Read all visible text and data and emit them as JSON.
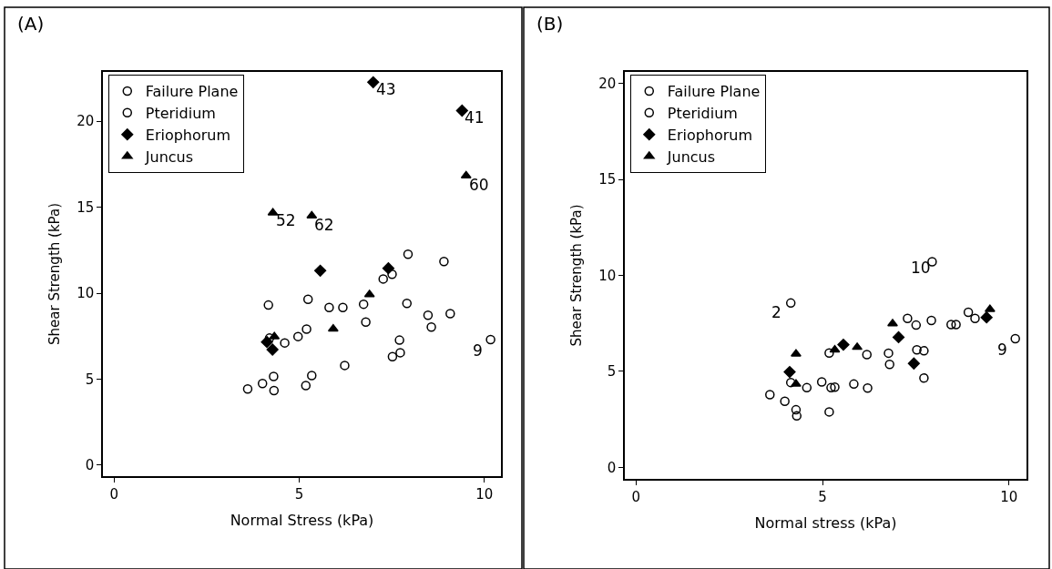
{
  "chart_data": [
    {
      "type": "scatter",
      "title": "(A)",
      "xlabel": "Normal Stress (kPa)",
      "ylabel": "Shear Strength (kPa)",
      "xlim": [
        -0.3,
        10.45
      ],
      "ylim": [
        -0.64,
        22.87
      ],
      "xticks": [
        0,
        5,
        10
      ],
      "yticks": [
        0,
        5,
        10,
        15,
        20
      ],
      "legend": "top left",
      "series": [
        {
          "name": "Failure Plane",
          "color": "#000000",
          "marker": "circle-open",
          "x": [
            4.17,
            5.24,
            5.81,
            6.18,
            6.74,
            6.8,
            7.91,
            8.48,
            9.08,
            8.57,
            4.97,
            5.2,
            4.61,
            4.2,
            7.71,
            7.73,
            7.52,
            10.17,
            6.23,
            5.34,
            5.18,
            4.31,
            4.32,
            4.01,
            3.61,
            7.27,
            7.51,
            7.94,
            8.91
          ],
          "values": [
            9.31,
            9.65,
            9.17,
            9.17,
            9.36,
            8.32,
            9.41,
            8.72,
            8.81,
            8.03,
            7.48,
            7.91,
            7.11,
            7.39,
            7.27,
            6.54,
            6.31,
            7.3,
            5.8,
            5.21,
            4.63,
            5.16,
            4.34,
            4.75,
            4.43,
            10.83,
            11.1,
            12.27,
            11.84
          ]
        },
        {
          "name": "Pteridium",
          "color": "#000000",
          "marker": "circle-open"
        },
        {
          "name": "Eriophorum",
          "color": "#000000",
          "marker": "diamond",
          "x": [
            7.0,
            9.4,
            5.57,
            7.41,
            4.13,
            4.28
          ],
          "values": [
            22.27,
            20.62,
            11.31,
            11.45,
            7.16,
            6.72
          ]
        },
        {
          "name": "Juncus",
          "color": "#000000",
          "marker": "triangle-up",
          "x": [
            9.51,
            4.29,
            5.34,
            6.9,
            5.92,
            4.33
          ],
          "values": [
            16.84,
            14.68,
            14.5,
            9.93,
            7.93,
            7.48
          ]
        }
      ],
      "annotations": [
        {
          "text": "43",
          "x": 7.0,
          "y": 22.27
        },
        {
          "text": "41",
          "x": 9.4,
          "y": 20.62
        },
        {
          "text": "60",
          "x": 9.51,
          "y": 16.84
        },
        {
          "text": "52",
          "x": 4.29,
          "y": 14.68
        },
        {
          "text": "62",
          "x": 5.34,
          "y": 14.5
        },
        {
          "text": "9",
          "x": 10.17,
          "y": 7.3
        }
      ]
    },
    {
      "type": "scatter",
      "title": "(B)",
      "xlabel": "Normal stress (kPa)",
      "ylabel": "Shear Strength (kPa)",
      "xlim": [
        -0.3,
        10.47
      ],
      "ylim": [
        -0.6,
        20.6
      ],
      "xticks": [
        0,
        5,
        10
      ],
      "yticks": [
        0,
        5,
        10,
        15,
        20
      ],
      "legend": "top left",
      "series": [
        {
          "name": "Failure Plane",
          "color": "#000000",
          "marker": "circle-open",
          "x": [
            4.15,
            3.59,
            3.99,
            4.29,
            4.31,
            4.15,
            4.58,
            4.98,
            5.23,
            5.33,
            5.18,
            5.18,
            5.84,
            6.19,
            6.21,
            6.77,
            6.8,
            7.28,
            7.51,
            7.92,
            7.53,
            7.72,
            7.72,
            8.45,
            8.58,
            8.91,
            9.09,
            10.17,
            7.94
          ],
          "values": [
            8.56,
            3.79,
            3.44,
            3.0,
            2.68,
            4.42,
            4.15,
            4.45,
            4.15,
            4.18,
            2.89,
            5.96,
            4.34,
            5.87,
            4.13,
            5.95,
            5.36,
            7.76,
            7.41,
            7.65,
            6.12,
            6.07,
            4.65,
            7.44,
            7.44,
            8.08,
            7.76,
            6.7,
            10.71
          ]
        },
        {
          "name": "Pteridium",
          "color": "#000000",
          "marker": "circle-open"
        },
        {
          "name": "Eriophorum",
          "color": "#000000",
          "marker": "diamond",
          "x": [
            4.12,
            5.56,
            7.04,
            7.45,
            9.4
          ],
          "values": [
            4.97,
            6.39,
            6.78,
            5.41,
            7.81
          ]
        },
        {
          "name": "Juncus",
          "color": "#000000",
          "marker": "triangle-up",
          "x": [
            4.29,
            4.29,
            5.33,
            5.93,
            6.88,
            9.49
          ],
          "values": [
            5.91,
            4.34,
            6.12,
            6.26,
            7.49,
            8.23
          ]
        }
      ],
      "annotations": [
        {
          "text": "2",
          "x": 4.15,
          "y": 8.56
        },
        {
          "text": "10",
          "x": 7.94,
          "y": 10.71
        },
        {
          "text": "9",
          "x": 10.17,
          "y": 6.7
        }
      ]
    }
  ]
}
